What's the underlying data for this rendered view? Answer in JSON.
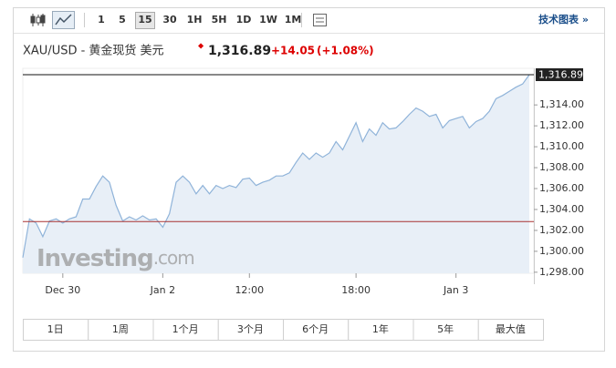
{
  "toolbar": {
    "intervals": [
      "1",
      "5",
      "15",
      "30",
      "1H",
      "5H",
      "1D",
      "1W",
      "1M"
    ],
    "selected": "15",
    "link": "技术图表 »"
  },
  "header": {
    "title": "XAU/USD - 黄金现货 美元",
    "price": "1,316.89",
    "change": "+14.05",
    "change_pct": "(+1.08%)"
  },
  "watermark": {
    "brand": "Investing",
    "suffix": ".com"
  },
  "ranges": [
    "1日",
    "1周",
    "1个月",
    "3个月",
    "6个月",
    "1年",
    "5年",
    "最大值"
  ],
  "chart_data": {
    "type": "area",
    "categories": [
      null,
      null,
      null,
      null,
      null,
      null,
      "Dec 30",
      null,
      null,
      null,
      null,
      null,
      null,
      null,
      null,
      null,
      null,
      null,
      null,
      null,
      null,
      "Jan 2",
      null,
      null,
      null,
      null,
      null,
      null,
      null,
      null,
      null,
      null,
      null,
      null,
      "12:00",
      null,
      null,
      null,
      null,
      null,
      null,
      null,
      null,
      null,
      null,
      null,
      null,
      null,
      null,
      null,
      "18:00",
      null,
      null,
      null,
      null,
      null,
      null,
      null,
      null,
      null,
      null,
      null,
      null,
      null,
      null,
      "Jan 3",
      null,
      null,
      null,
      null,
      null,
      null,
      null,
      null,
      null,
      null,
      null
    ],
    "series": [
      {
        "name": "XAU/USD",
        "color": "#8fb3d9",
        "fill": "#e8eff7",
        "values": [
          1299.4,
          1303.1,
          1302.7,
          1301.4,
          1302.9,
          1303.1,
          1302.7,
          1303.1,
          1303.3,
          1305.0,
          1305.0,
          1306.2,
          1307.2,
          1306.6,
          1304.4,
          1302.9,
          1303.3,
          1303.0,
          1303.4,
          1303.0,
          1303.1,
          1302.3,
          1303.6,
          1306.6,
          1307.2,
          1306.6,
          1305.5,
          1306.3,
          1305.5,
          1306.3,
          1306.0,
          1306.3,
          1306.1,
          1306.9,
          1307.0,
          1306.3,
          1306.6,
          1306.8,
          1307.2,
          1307.2,
          1307.5,
          1308.5,
          1309.4,
          1308.8,
          1309.4,
          1309.0,
          1309.4,
          1310.5,
          1309.7,
          1311.0,
          1312.3,
          1310.5,
          1311.7,
          1311.1,
          1312.3,
          1311.7,
          1311.8,
          1312.4,
          1313.1,
          1313.7,
          1313.4,
          1312.9,
          1313.1,
          1311.8,
          1312.5,
          1312.7,
          1312.9,
          1311.8,
          1312.4,
          1312.7,
          1313.4,
          1314.6,
          1314.9,
          1315.3,
          1315.7,
          1316.0,
          1316.89
        ],
        "last_label": "1,316.89"
      }
    ],
    "reference": {
      "value": 1302.84,
      "color": "#a83232"
    },
    "ylim": [
      1297.9,
      1317.5
    ],
    "yticks": [
      {
        "value": 1298,
        "label": "1,298.00"
      },
      {
        "value": 1300,
        "label": "1,300.00"
      },
      {
        "value": 1302,
        "label": "1,302.00"
      },
      {
        "value": 1304,
        "label": "1,304.00"
      },
      {
        "value": 1306,
        "label": "1,306.00"
      },
      {
        "value": 1308,
        "label": "1,308.00"
      },
      {
        "value": 1310,
        "label": "1,310.00"
      },
      {
        "value": 1312,
        "label": "1,312.00"
      },
      {
        "value": 1314,
        "label": "1,314.00"
      }
    ],
    "grid": false
  }
}
